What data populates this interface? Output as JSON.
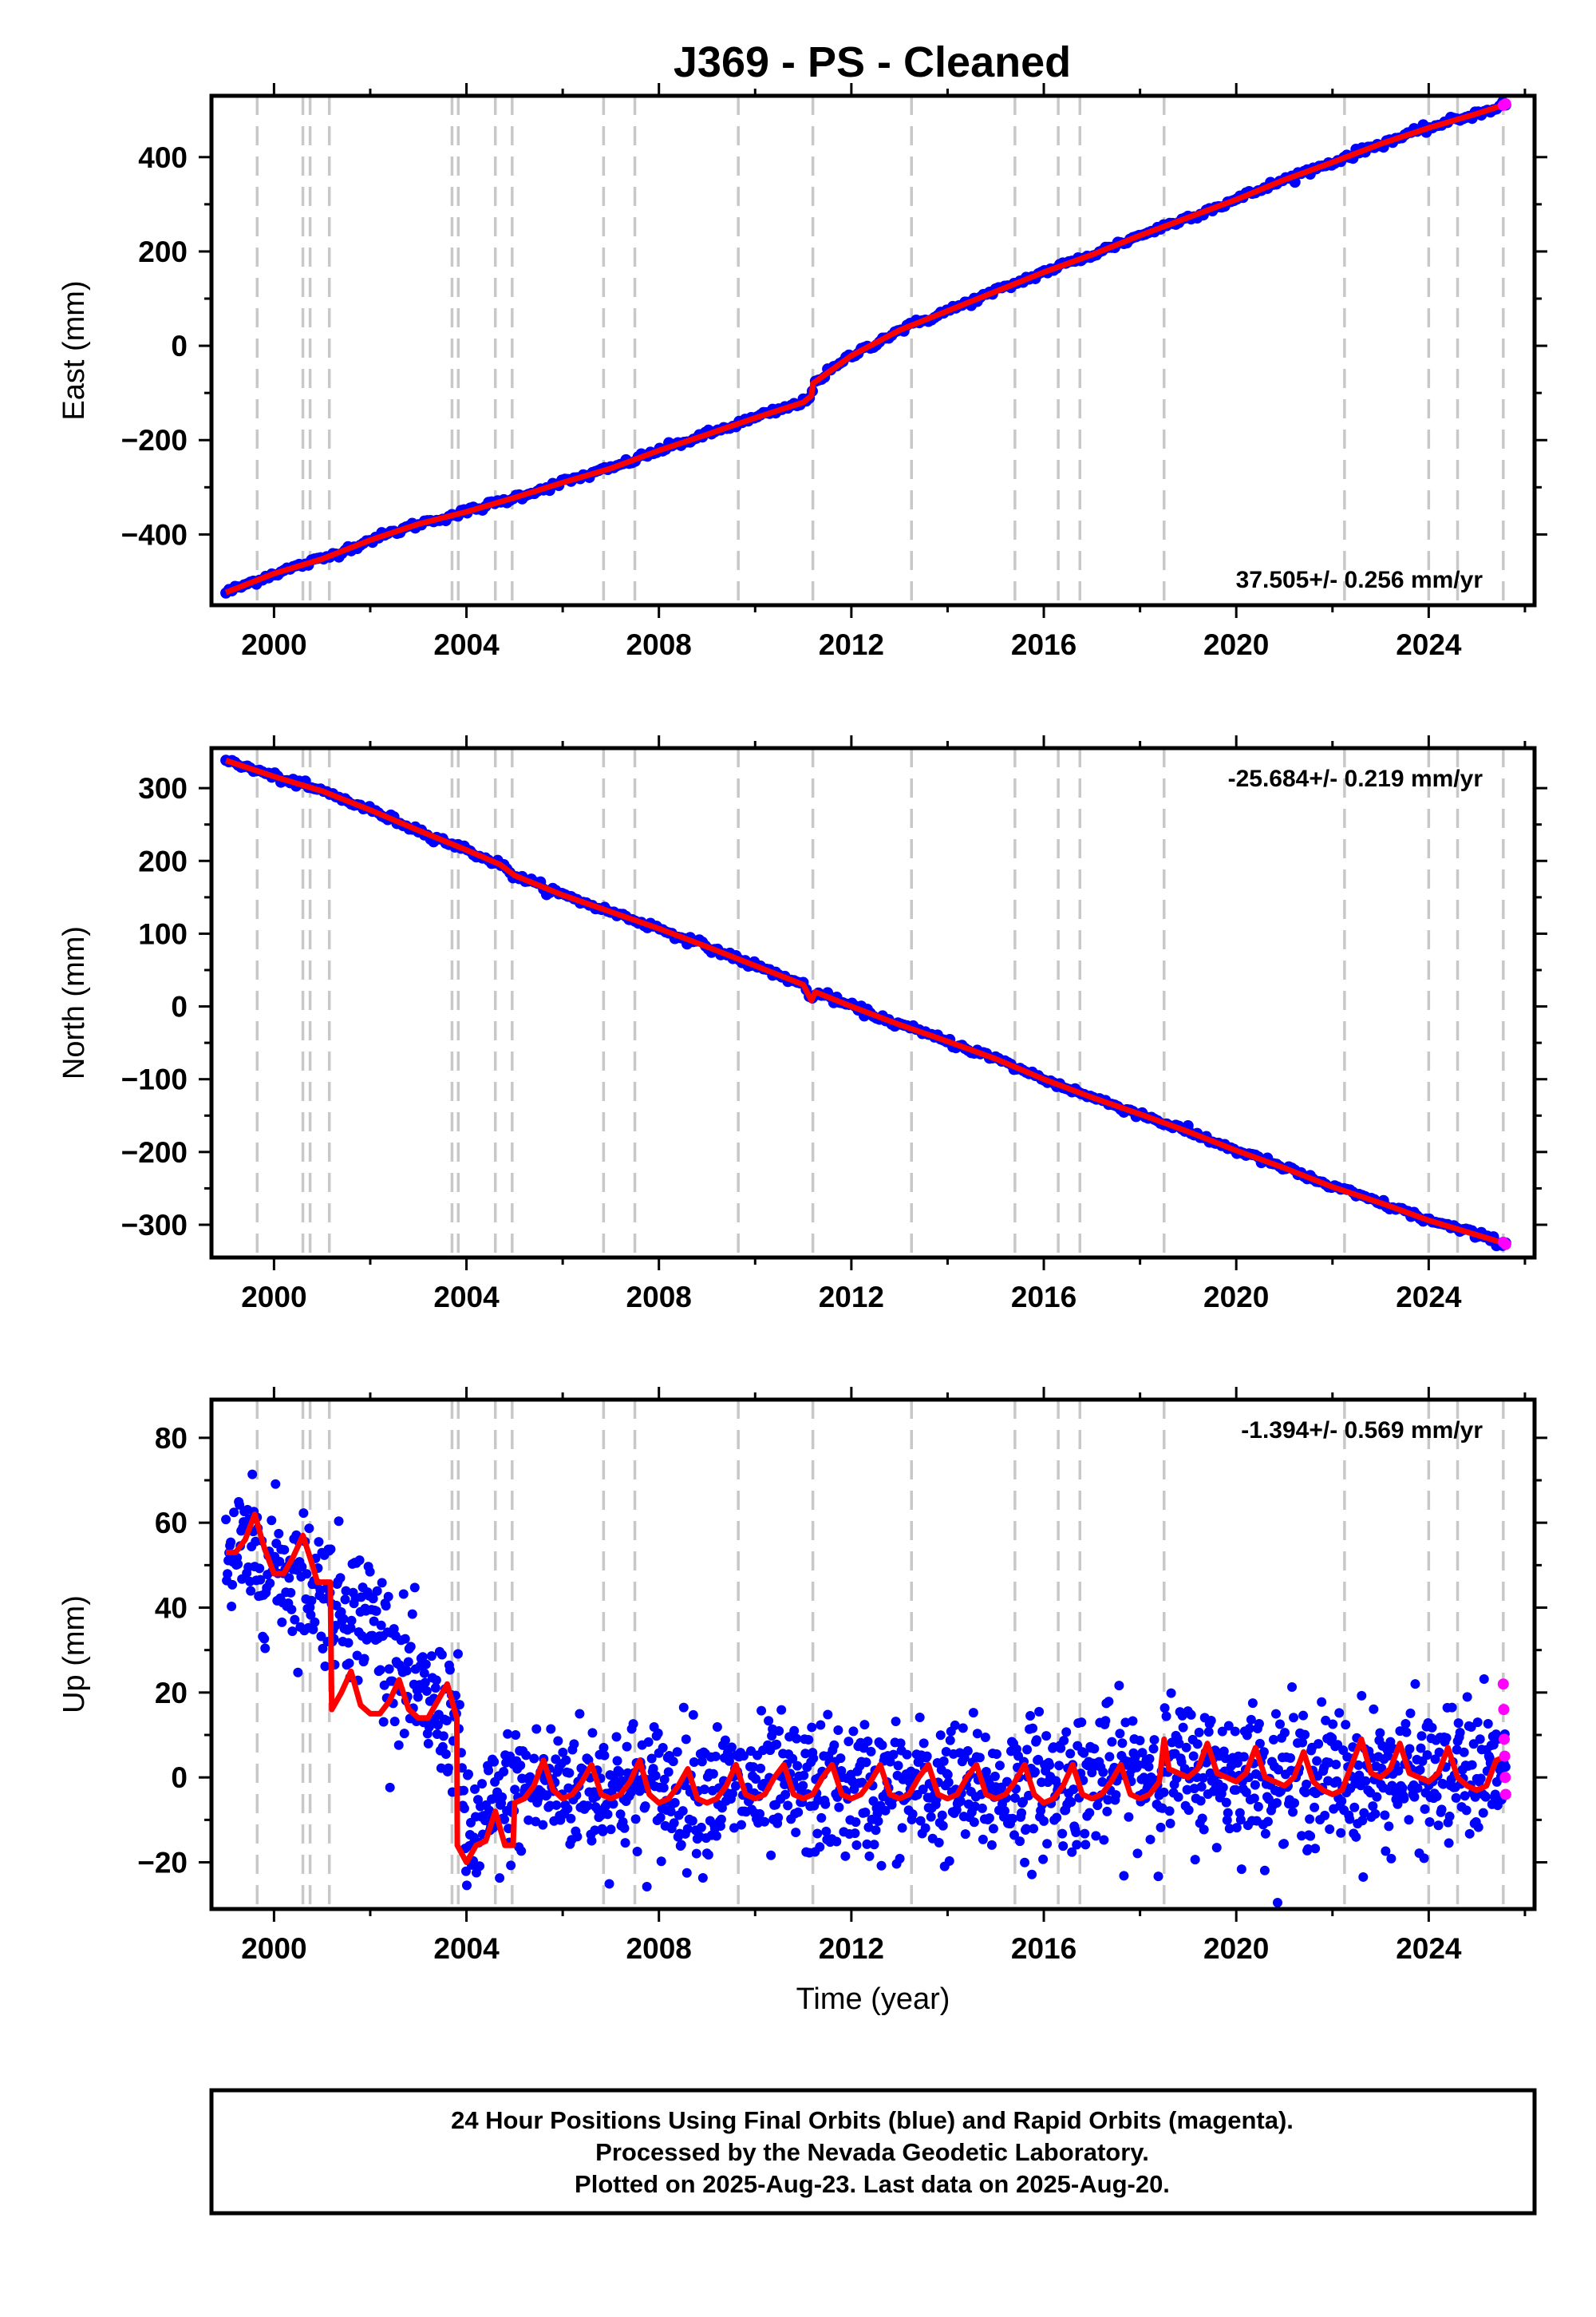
{
  "title": "J369  - PS - Cleaned",
  "footer": {
    "lines": [
      "24 Hour Positions Using Final Orbits (blue) and Rapid Orbits (magenta).",
      "Processed by the Nevada Geodetic Laboratory.",
      "Plotted on 2025-Aug-23. Last data on 2025-Aug-20."
    ]
  },
  "colors": {
    "final_points": "#0000ff",
    "rapid_points": "#ff00ff",
    "model_line": "#ff0000",
    "event_lines": "#c8c8c8"
  },
  "chart_data": [
    {
      "type": "scatter",
      "name": "east",
      "ylabel": "East (mm)",
      "xlabel": "",
      "xlim": [
        1998.7,
        2026.2
      ],
      "ylim": [
        -550,
        530
      ],
      "xticks": [
        2000,
        2004,
        2008,
        2012,
        2016,
        2020,
        2024
      ],
      "yticks": [
        -400,
        -200,
        0,
        200,
        400
      ],
      "rate_label": "37.505+/- 0.256 mm/yr",
      "rate_position": "bottom-right",
      "grid": false,
      "x": [
        1999.0,
        2000.0,
        2001.0,
        2002.0,
        2003.0,
        2004.0,
        2005.0,
        2006.0,
        2007.0,
        2008.0,
        2009.0,
        2010.0,
        2011.0,
        2011.17,
        2011.2,
        2012.0,
        2013.0,
        2014.0,
        2015.0,
        2016.0,
        2017.0,
        2018.0,
        2019.0,
        2020.0,
        2021.0,
        2022.0,
        2023.0,
        2024.0,
        2025.0,
        2025.6
      ],
      "y": [
        -523,
        -483,
        -452,
        -412,
        -378,
        -352,
        -322,
        -290,
        -260,
        -222,
        -188,
        -153,
        -120,
        -106,
        -80,
        -21,
        33,
        74,
        115,
        156,
        193,
        234,
        272,
        310,
        352,
        389,
        428,
        462,
        492,
        512
      ],
      "rapid": {
        "x": [
          2025.55,
          2025.6
        ],
        "y": [
          510,
          513
        ]
      }
    },
    {
      "type": "scatter",
      "name": "north",
      "ylabel": "North (mm)",
      "xlabel": "",
      "xlim": [
        1998.7,
        2026.2
      ],
      "ylim": [
        -345,
        355
      ],
      "xticks": [
        2000,
        2004,
        2008,
        2012,
        2016,
        2020,
        2024
      ],
      "yticks": [
        -300,
        -200,
        -100,
        0,
        100,
        200,
        300
      ],
      "rate_label": "-25.684+/- 0.219 mm/yr",
      "rate_position": "top-right",
      "grid": false,
      "x": [
        1999.0,
        2000.0,
        2001.0,
        2002.0,
        2003.0,
        2004.0,
        2004.7,
        2005.0,
        2006.0,
        2007.0,
        2008.0,
        2009.0,
        2010.0,
        2011.0,
        2011.17,
        2011.25,
        2012.0,
        2013.0,
        2014.0,
        2015.0,
        2016.0,
        2017.0,
        2018.0,
        2019.0,
        2020.0,
        2021.0,
        2022.0,
        2023.0,
        2024.0,
        2025.0,
        2025.6
      ],
      "y": [
        338,
        316,
        296,
        270,
        242,
        215,
        195,
        180,
        153,
        130,
        107,
        82,
        56,
        30,
        8,
        20,
        0,
        -25,
        -48,
        -72,
        -100,
        -125,
        -148,
        -172,
        -198,
        -222,
        -248,
        -270,
        -294,
        -314,
        -326
      ],
      "rapid": {
        "x": [
          2025.55,
          2025.6
        ],
        "y": [
          -324,
          -327
        ]
      }
    },
    {
      "type": "scatter",
      "name": "up",
      "ylabel": "Up (mm)",
      "xlabel": "Time (year)",
      "xlim": [
        1998.7,
        2026.2
      ],
      "ylim": [
        -31,
        89
      ],
      "xticks": [
        2000,
        2004,
        2008,
        2012,
        2016,
        2020,
        2024
      ],
      "yticks": [
        -20,
        0,
        20,
        40,
        60,
        80
      ],
      "rate_label": "-1.394+/- 0.569 mm/yr",
      "rate_position": "top-right",
      "grid": false,
      "model": {
        "x": [
          1999.0,
          1999.2,
          1999.4,
          1999.6,
          1999.8,
          2000.0,
          2000.2,
          2000.4,
          2000.6,
          2000.8,
          2000.9,
          2001.0,
          2001.17,
          2001.2,
          2001.4,
          2001.6,
          2001.8,
          2002.0,
          2002.2,
          2002.4,
          2002.6,
          2002.8,
          2003.0,
          2003.2,
          2003.4,
          2003.6,
          2003.8,
          2003.81,
          2004.0,
          2004.2,
          2004.4,
          2004.6,
          2004.8,
          2004.97,
          2005.0,
          2005.2,
          2005.4,
          2005.6,
          2005.8,
          2006.0,
          2006.2,
          2006.4,
          2006.6,
          2006.8,
          2007.0,
          2007.2,
          2007.4,
          2007.6,
          2007.8,
          2008.0,
          2008.2,
          2008.4,
          2008.6,
          2008.8,
          2009.0,
          2009.2,
          2009.4,
          2009.6,
          2009.8,
          2010.0,
          2010.2,
          2010.4,
          2010.6,
          2010.8,
          2011.0,
          2011.2,
          2011.4,
          2011.6,
          2011.8,
          2012.0,
          2012.2,
          2012.4,
          2012.6,
          2012.8,
          2013.0,
          2013.2,
          2013.4,
          2013.6,
          2013.8,
          2014.0,
          2014.2,
          2014.4,
          2014.6,
          2014.8,
          2015.0,
          2015.2,
          2015.4,
          2015.6,
          2015.8,
          2016.0,
          2016.2,
          2016.4,
          2016.6,
          2016.8,
          2017.0,
          2017.2,
          2017.4,
          2017.6,
          2017.8,
          2018.0,
          2018.2,
          2018.4,
          2018.5,
          2018.6,
          2018.8,
          2019.0,
          2019.2,
          2019.4,
          2019.6,
          2019.8,
          2020.0,
          2020.2,
          2020.4,
          2020.6,
          2020.8,
          2021.0,
          2021.2,
          2021.4,
          2021.6,
          2021.8,
          2022.0,
          2022.2,
          2022.4,
          2022.6,
          2022.8,
          2023.0,
          2023.2,
          2023.4,
          2023.6,
          2023.8,
          2024.0,
          2024.2,
          2024.4,
          2024.6,
          2024.8,
          2025.0,
          2025.2,
          2025.4,
          2025.6
        ],
        "y": [
          53,
          53,
          56,
          62,
          54,
          48,
          48,
          52,
          57,
          50,
          46,
          46,
          46,
          16,
          20,
          25,
          17,
          15,
          15,
          18,
          23,
          16,
          14,
          14,
          18,
          22,
          14,
          -16,
          -20,
          -16,
          -15,
          -8,
          -16,
          -16,
          -6,
          -5,
          -2,
          4,
          -3,
          -5,
          -4,
          -1,
          3,
          -4,
          -5,
          -4,
          -1,
          4,
          -4,
          -6,
          -5,
          -2,
          2,
          -5,
          -6,
          -5,
          -2,
          3,
          -4,
          -5,
          -4,
          0,
          3,
          -4,
          -5,
          -4,
          0,
          3,
          -4,
          -5,
          -4,
          -1,
          3,
          -4,
          -5,
          -4,
          0,
          3,
          -4,
          -5,
          -4,
          0,
          3,
          -4,
          -5,
          -4,
          -1,
          3,
          -4,
          -6,
          -5,
          -2,
          3,
          -4,
          -5,
          -4,
          -1,
          3,
          -4,
          -5,
          -4,
          -1,
          9,
          2,
          1,
          0,
          2,
          8,
          1,
          0,
          -1,
          1,
          7,
          0,
          -1,
          -2,
          0,
          6,
          -1,
          -3,
          -4,
          -3,
          3,
          9,
          1,
          0,
          2,
          8,
          1,
          0,
          -1,
          1,
          7,
          0,
          -2,
          -3,
          -2,
          4,
          5
        ]
      },
      "points": {
        "anchor_x": [
          1999.0,
          2000.0,
          2001.0,
          2001.2,
          2002.0,
          2003.0,
          2003.8,
          2004.0,
          2005.0,
          2006.0,
          2010.0,
          2015.0,
          2018.5,
          2020.0,
          2022.0,
          2024.0,
          2025.6
        ],
        "anchor_y": [
          54,
          50,
          45,
          42,
          38,
          18,
          14,
          -16,
          -3,
          -2,
          -3,
          -3,
          2,
          1,
          0,
          0,
          2
        ],
        "spread_mm": 8,
        "count": 1600
      },
      "rapid": {
        "x": [
          2025.55,
          2025.56,
          2025.57,
          2025.58,
          2025.59,
          2025.6
        ],
        "y": [
          22,
          16,
          9,
          5,
          0,
          -4
        ]
      }
    }
  ],
  "event_years": [
    1999.65,
    2000.6,
    2000.75,
    2001.15,
    2003.7,
    2003.83,
    2004.6,
    2004.95,
    2006.85,
    2007.5,
    2009.65,
    2011.2,
    2013.25,
    2015.4,
    2016.3,
    2016.75,
    2018.5,
    2022.25,
    2024.0,
    2024.6,
    2025.55
  ]
}
